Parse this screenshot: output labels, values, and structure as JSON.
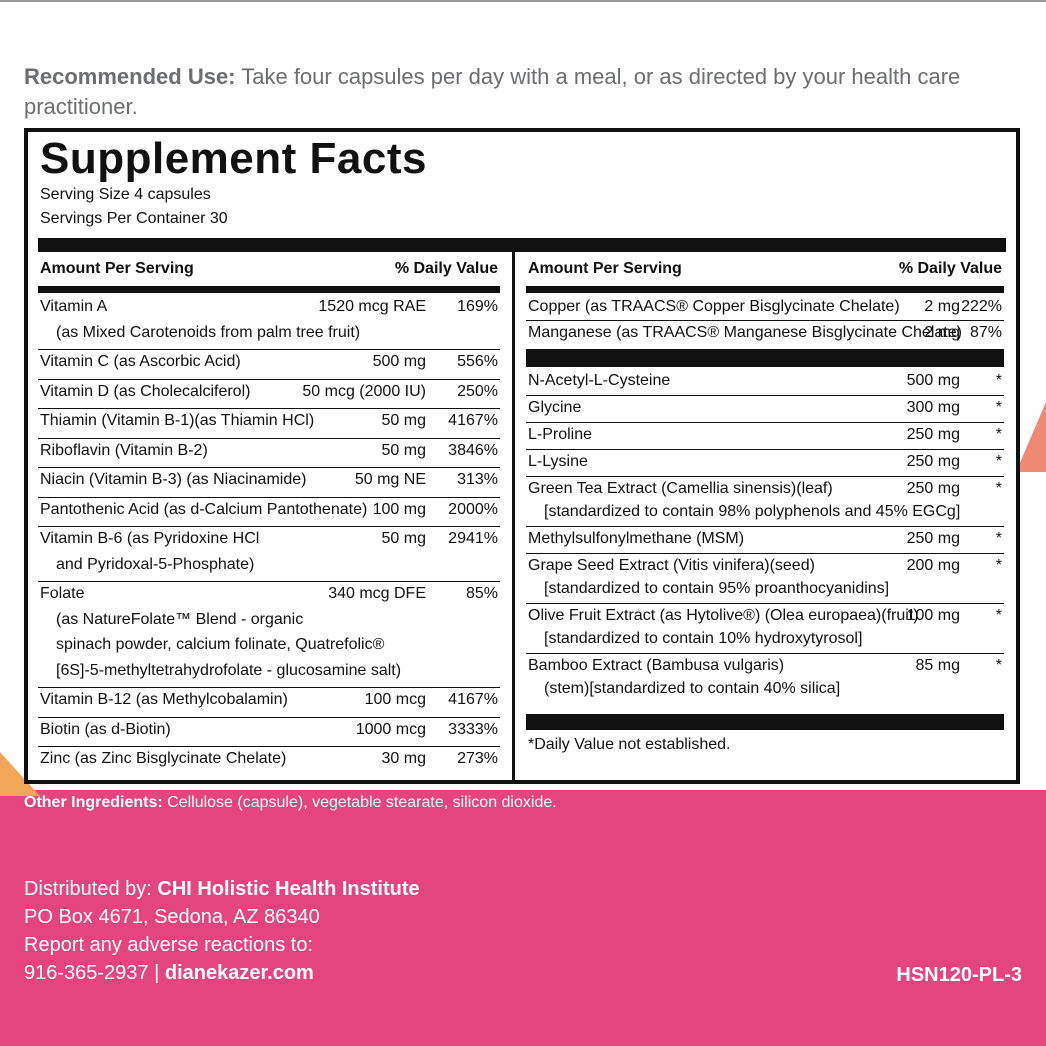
{
  "recommended": {
    "label": "Recommended Use:",
    "text": " Take four capsules per day with a meal, or as directed by your health care practitioner."
  },
  "facts": {
    "title": "Supplement Facts",
    "serving_size": "Serving Size 4 capsules",
    "servings_per_container": "Servings Per Container 30",
    "amount_header": "Amount Per Serving",
    "dv_header": "% Daily Value",
    "left_rows": [
      {
        "name": "Vitamin A",
        "amount": "1520 mcg RAE",
        "dv": "169%",
        "sub": [
          "(as Mixed Carotenoids from palm tree fruit)"
        ]
      },
      {
        "name": "Vitamin C (as Ascorbic Acid)",
        "amount": "500 mg",
        "dv": "556%",
        "sub": []
      },
      {
        "name": "Vitamin D (as Cholecalciferol)",
        "amount": "50 mcg (2000 IU)",
        "dv": "250%",
        "sub": []
      },
      {
        "name": "Thiamin (Vitamin B-1)(as Thiamin HCl)",
        "amount": "50 mg",
        "dv": "4167%",
        "sub": []
      },
      {
        "name": "Riboflavin (Vitamin B-2)",
        "amount": "50 mg",
        "dv": "3846%",
        "sub": []
      },
      {
        "name": "Niacin (Vitamin B-3) (as Niacinamide)",
        "amount": "50 mg NE",
        "dv": "313%",
        "sub": []
      },
      {
        "name": "Pantothenic Acid  (as d-Calcium Pantothenate)",
        "amount": "100 mg",
        "dv": "2000%",
        "sub": []
      },
      {
        "name": "Vitamin B-6 (as Pyridoxine HCl",
        "amount": "50 mg",
        "dv": "2941%",
        "sub": [
          "and Pyridoxal-5-Phosphate)"
        ]
      },
      {
        "name": "Folate",
        "amount": "340 mcg DFE",
        "dv": "85%",
        "sub": [
          "(as NatureFolate™ Blend - organic",
          "spinach powder, calcium folinate, Quatrefolic®",
          "[6S]-5-methyltetrahydrofolate - glucosamine salt)"
        ]
      },
      {
        "name": "Vitamin B-12 (as Methylcobalamin)",
        "amount": "100 mcg",
        "dv": "4167%",
        "sub": []
      },
      {
        "name": "Biotin (as d-Biotin)",
        "amount": "1000 mcg",
        "dv": "3333%",
        "sub": []
      },
      {
        "name": "Zinc (as Zinc Bisglycinate Chelate)",
        "amount": "30 mg",
        "dv": "273%",
        "sub": []
      }
    ],
    "right_top_rows": [
      {
        "name": "Copper (as TRAACS® Copper Bisglycinate Chelate)",
        "amount": "2 mg",
        "dv": "222%",
        "sub": []
      },
      {
        "name": "Manganese (as TRAACS® Manganese Bisglycinate Chelate)",
        "amount": "2 mg",
        "dv": "87%",
        "sub": []
      }
    ],
    "right_rows": [
      {
        "name": "N-Acetyl-L-Cysteine",
        "amount": "500 mg",
        "dv": "*",
        "sub": []
      },
      {
        "name": "Glycine",
        "amount": "300 mg",
        "dv": "*",
        "sub": []
      },
      {
        "name": "L-Proline",
        "amount": "250 mg",
        "dv": "*",
        "sub": []
      },
      {
        "name": "L-Lysine",
        "amount": "250 mg",
        "dv": "*",
        "sub": []
      },
      {
        "name": "Green Tea Extract (Camellia sinensis)(leaf)",
        "amount": "250 mg",
        "dv": "*",
        "sub": [
          "[standardized to contain 98% polyphenols and 45% EGCg]"
        ]
      },
      {
        "name": "Methylsulfonylmethane (MSM)",
        "amount": "250 mg",
        "dv": "*",
        "sub": []
      },
      {
        "name": "Grape Seed Extract (Vitis vinifera)(seed)",
        "amount": "200 mg",
        "dv": "*",
        "sub": [
          "[standardized to contain 95% proanthocyanidins]"
        ]
      },
      {
        "name": "Olive Fruit Extract (as Hytolive®) (Olea europaea)(fruit)",
        "amount": "100 mg",
        "dv": "*",
        "sub": [
          "[standardized to contain 10% hydroxytyrosol]"
        ]
      },
      {
        "name": "Bamboo Extract (Bambusa vulgaris)",
        "amount": "85 mg",
        "dv": "*",
        "sub": [
          "(stem)[standardized to contain 40% silica]"
        ]
      }
    ],
    "footnote": "*Daily Value not established."
  },
  "other": {
    "label": "Other Ingredients:",
    "text": " Cellulose (capsule), vegetable stearate, silicon dioxide."
  },
  "distributor": {
    "label": "Distributed by: ",
    "name": "CHI Holistic Health Institute",
    "address": "PO Box 4671, Sedona, AZ 86340",
    "report": "Report any adverse reactions to:",
    "phone": "916-365-2937 | ",
    "website": "dianekazer.com"
  },
  "product_code": "HSN120-PL-3"
}
